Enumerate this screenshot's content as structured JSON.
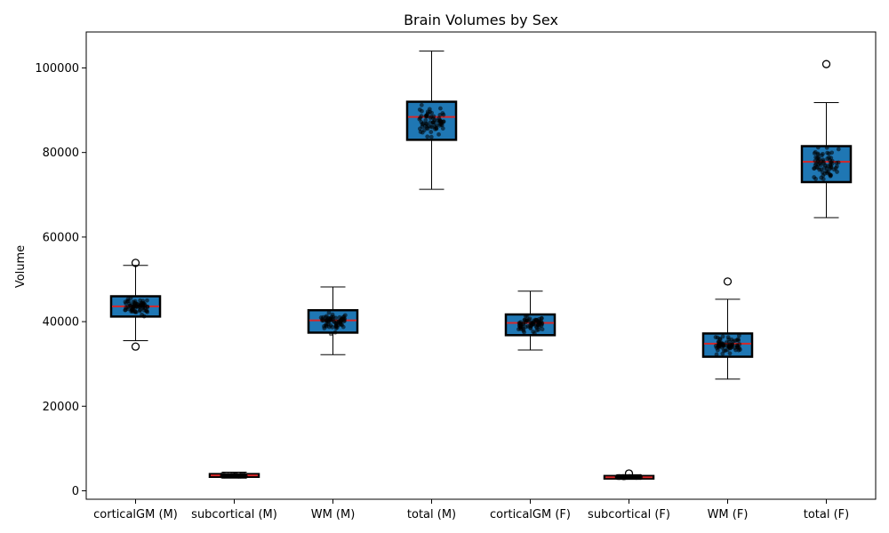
{
  "chart_data": {
    "type": "box",
    "title": "Brain Volumes by Sex",
    "xlabel": "",
    "ylabel": "Volume",
    "ylim": [
      -2000,
      108500
    ],
    "yticks": [
      0,
      20000,
      40000,
      60000,
      80000,
      100000
    ],
    "grid": false,
    "legend": "none",
    "colors": {
      "box_fill": "#1f77b4",
      "box_edge": "#000000",
      "median": "#d62728",
      "points": "#000000"
    },
    "categories": [
      "corticalGM (M)",
      "subcortical (M)",
      "WM (M)",
      "total (M)",
      "corticalGM (F)",
      "subcortical (F)",
      "WM (F)",
      "total (F)"
    ],
    "boxes": [
      {
        "label": "corticalGM (M)",
        "whisker_low": 35500,
        "q1": 41200,
        "median": 43600,
        "q3": 46000,
        "whisker_high": 53300,
        "outliers": [
          53900,
          34100
        ],
        "points_range": [
          34000,
          54000
        ]
      },
      {
        "label": "subcortical (M)",
        "whisker_low": 3000,
        "q1": 3300,
        "median": 3650,
        "q3": 3950,
        "whisker_high": 4400,
        "outliers": [],
        "points_range": [
          3000,
          4400
        ]
      },
      {
        "label": "WM (M)",
        "whisker_low": 32200,
        "q1": 37400,
        "median": 40300,
        "q3": 42700,
        "whisker_high": 48200,
        "outliers": [],
        "points_range": [
          32200,
          48200
        ]
      },
      {
        "label": "total (M)",
        "whisker_low": 71300,
        "q1": 83000,
        "median": 88400,
        "q3": 92000,
        "whisker_high": 104000,
        "outliers": [],
        "points_range": [
          71300,
          104000
        ]
      },
      {
        "label": "corticalGM (F)",
        "whisker_low": 33300,
        "q1": 36800,
        "median": 39700,
        "q3": 41700,
        "whisker_high": 47200,
        "outliers": [],
        "points_range": [
          33300,
          47200
        ]
      },
      {
        "label": "subcortical (F)",
        "whisker_low": 2700,
        "q1": 2900,
        "median": 3200,
        "q3": 3500,
        "whisker_high": 3800,
        "outliers": [
          4100
        ],
        "points_range": [
          2700,
          4100
        ]
      },
      {
        "label": "WM (F)",
        "whisker_low": 26400,
        "q1": 31700,
        "median": 34800,
        "q3": 37200,
        "whisker_high": 45300,
        "outliers": [
          49500
        ],
        "points_range": [
          26400,
          49500
        ]
      },
      {
        "label": "total (F)",
        "whisker_low": 64600,
        "q1": 73000,
        "median": 77800,
        "q3": 81500,
        "whisker_high": 91800,
        "outliers": [
          100900
        ],
        "points_range": [
          64600,
          101000
        ]
      }
    ]
  }
}
